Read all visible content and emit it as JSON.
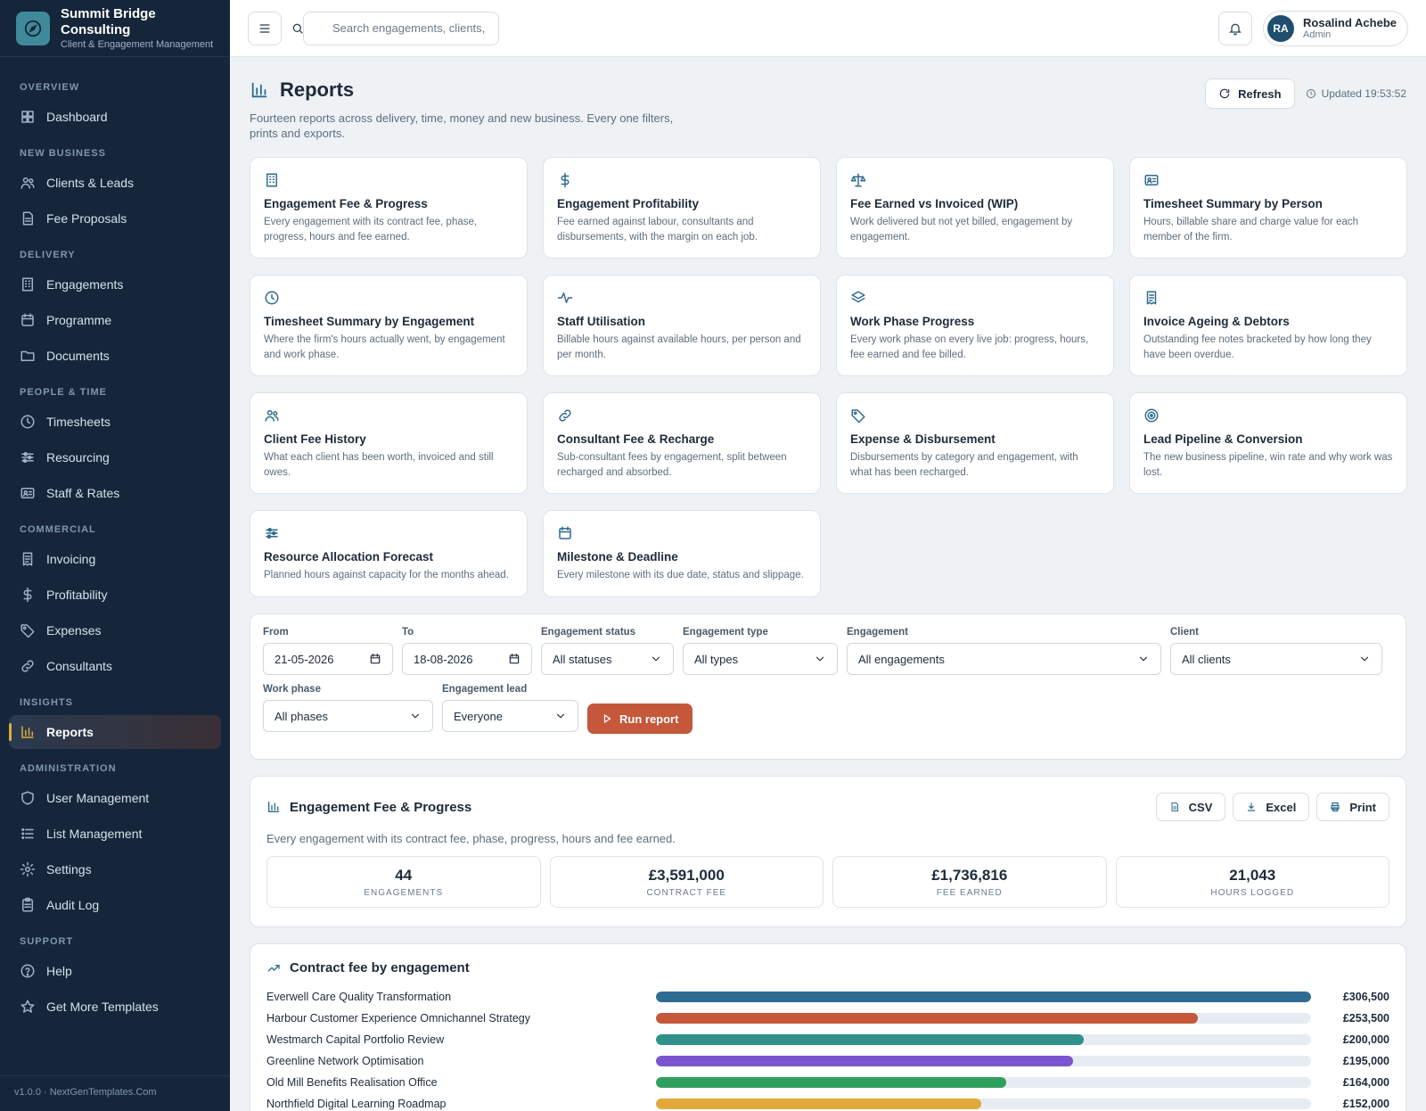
{
  "brand": {
    "name": "Summit Bridge Consulting",
    "subtitle": "Client & Engagement Management"
  },
  "sidebar": {
    "sections": [
      {
        "title": "OVERVIEW",
        "items": [
          {
            "label": "Dashboard",
            "icon": "dashboard-icon"
          }
        ]
      },
      {
        "title": "NEW BUSINESS",
        "items": [
          {
            "label": "Clients & Leads",
            "icon": "users-icon"
          },
          {
            "label": "Fee Proposals",
            "icon": "file-icon"
          }
        ]
      },
      {
        "title": "DELIVERY",
        "items": [
          {
            "label": "Engagements",
            "icon": "building-icon"
          },
          {
            "label": "Programme",
            "icon": "calendar-icon"
          },
          {
            "label": "Documents",
            "icon": "folder-icon"
          }
        ]
      },
      {
        "title": "PEOPLE & TIME",
        "items": [
          {
            "label": "Timesheets",
            "icon": "clock-icon"
          },
          {
            "label": "Resourcing",
            "icon": "sliders-icon"
          },
          {
            "label": "Staff & Rates",
            "icon": "id-card-icon"
          }
        ]
      },
      {
        "title": "COMMERCIAL",
        "items": [
          {
            "label": "Invoicing",
            "icon": "receipt-icon"
          },
          {
            "label": "Profitability",
            "icon": "dollar-icon"
          },
          {
            "label": "Expenses",
            "icon": "tag-icon"
          },
          {
            "label": "Consultants",
            "icon": "link-icon"
          }
        ]
      },
      {
        "title": "INSIGHTS",
        "items": [
          {
            "label": "Reports",
            "icon": "bar-chart-icon",
            "active": true
          }
        ]
      },
      {
        "title": "ADMINISTRATION",
        "items": [
          {
            "label": "User Management",
            "icon": "shield-icon"
          },
          {
            "label": "List Management",
            "icon": "list-icon"
          },
          {
            "label": "Settings",
            "icon": "gear-icon"
          },
          {
            "label": "Audit Log",
            "icon": "clipboard-icon"
          }
        ]
      },
      {
        "title": "SUPPORT",
        "items": [
          {
            "label": "Help",
            "icon": "help-icon"
          },
          {
            "label": "Get More Templates",
            "icon": "star-icon"
          }
        ]
      }
    ],
    "footer": "v1.0.0 · NextGenTemplates.Com"
  },
  "topbar": {
    "search_placeholder": "Search engagements, clients, s",
    "user": {
      "initials": "RA",
      "name": "Rosalind Achebe",
      "role": "Admin"
    }
  },
  "page": {
    "title": "Reports",
    "description": "Fourteen reports across delivery, time, money and new business. Every one filters, prints and exports.",
    "refresh_label": "Refresh",
    "updated": "Updated 19:53:52"
  },
  "report_cards": [
    {
      "title": "Engagement Fee & Progress",
      "desc": "Every engagement with its contract fee, phase, progress, hours and fee earned.",
      "icon": "building-icon"
    },
    {
      "title": "Engagement Profitability",
      "desc": "Fee earned against labour, consultants and disbursements, with the margin on each job.",
      "icon": "dollar-icon"
    },
    {
      "title": "Fee Earned vs Invoiced (WIP)",
      "desc": "Work delivered but not yet billed, engagement by engagement.",
      "icon": "scale-icon"
    },
    {
      "title": "Timesheet Summary by Person",
      "desc": "Hours, billable share and charge value for each member of the firm.",
      "icon": "id-card-icon"
    },
    {
      "title": "Timesheet Summary by Engagement",
      "desc": "Where the firm's hours actually went, by engagement and work phase.",
      "icon": "clock-icon"
    },
    {
      "title": "Staff Utilisation",
      "desc": "Billable hours against available hours, per person and per month.",
      "icon": "activity-icon"
    },
    {
      "title": "Work Phase Progress",
      "desc": "Every work phase on every live job: progress, hours, fee earned and fee billed.",
      "icon": "layers-icon"
    },
    {
      "title": "Invoice Ageing & Debtors",
      "desc": "Outstanding fee notes bracketed by how long they have been overdue.",
      "icon": "receipt-icon"
    },
    {
      "title": "Client Fee History",
      "desc": "What each client has been worth, invoiced and still owes.",
      "icon": "users-icon"
    },
    {
      "title": "Consultant Fee & Recharge",
      "desc": "Sub-consultant fees by engagement, split between recharged and absorbed.",
      "icon": "link-icon"
    },
    {
      "title": "Expense & Disbursement",
      "desc": "Disbursements by category and engagement, with what has been recharged.",
      "icon": "tag-icon"
    },
    {
      "title": "Lead Pipeline & Conversion",
      "desc": "The new business pipeline, win rate and why work was lost.",
      "icon": "target-icon"
    },
    {
      "title": "Resource Allocation Forecast",
      "desc": "Planned hours against capacity for the months ahead.",
      "icon": "sliders-icon"
    },
    {
      "title": "Milestone & Deadline",
      "desc": "Every milestone with its due date, status and slippage.",
      "icon": "calendar-icon"
    }
  ],
  "filters": {
    "from": {
      "label": "From",
      "value": "21-05-2026"
    },
    "to": {
      "label": "To",
      "value": "18-08-2026"
    },
    "status": {
      "label": "Engagement status",
      "value": "All statuses"
    },
    "type": {
      "label": "Engagement type",
      "value": "All types"
    },
    "engagement": {
      "label": "Engagement",
      "value": "All engagements"
    },
    "client": {
      "label": "Client",
      "value": "All clients"
    },
    "phase": {
      "label": "Work phase",
      "value": "All phases"
    },
    "lead": {
      "label": "Engagement lead",
      "value": "Everyone"
    },
    "run_label": "Run report"
  },
  "report": {
    "title": "Engagement Fee & Progress",
    "description": "Every engagement with its contract fee, phase, progress, hours and fee earned.",
    "exports": {
      "csv": "CSV",
      "excel": "Excel",
      "print": "Print"
    },
    "kpis": [
      {
        "value": "44",
        "label": "ENGAGEMENTS"
      },
      {
        "value": "£3,591,000",
        "label": "CONTRACT FEE"
      },
      {
        "value": "£1,736,816",
        "label": "FEE EARNED"
      },
      {
        "value": "21,043",
        "label": "HOURS LOGGED"
      }
    ]
  },
  "chart_data": {
    "type": "bar",
    "title": "Contract fee by engagement",
    "orientation": "horizontal",
    "categories": [
      "Everwell Care Quality Transformation",
      "Harbour Customer Experience Omnichannel Strategy",
      "Westmarch Capital Portfolio Review",
      "Greenline Network Optimisation",
      "Old Mill Benefits Realisation Office",
      "Northfield Digital Learning Roadmap"
    ],
    "values": [
      306500,
      253500,
      200000,
      195000,
      164000,
      152000
    ],
    "value_labels": [
      "£306,500",
      "£253,500",
      "£200,000",
      "£195,000",
      "£164,000",
      "£152,000"
    ],
    "colors": [
      "#2d6b93",
      "#c5573a",
      "#2f9189",
      "#7a55cf",
      "#2f9e5f",
      "#e0a93a"
    ],
    "xlim": [
      0,
      306500
    ]
  }
}
